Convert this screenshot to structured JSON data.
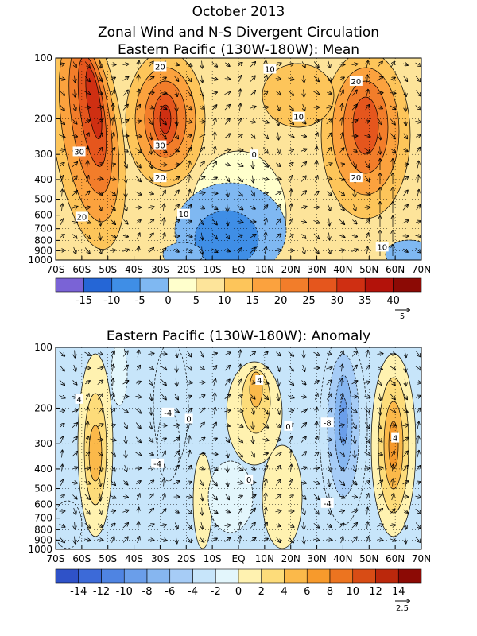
{
  "chart_data": [
    {
      "type": "heatmap",
      "title": "October 2013",
      "subtitle": "Zonal Wind and N-S Divergent Circulation",
      "panel_title": "Eastern Pacific (130W-180W): Mean",
      "x_ticks": [
        "70S",
        "60S",
        "50S",
        "40S",
        "30S",
        "20S",
        "10S",
        "EQ",
        "10N",
        "20N",
        "30N",
        "40N",
        "50N",
        "60N",
        "70N"
      ],
      "y_ticks": [
        "100",
        "200",
        "300",
        "400",
        "500",
        "600",
        "700",
        "800",
        "900",
        "1000"
      ],
      "x_range": [
        -70,
        70
      ],
      "y_range": [
        100,
        1000
      ],
      "y_scale": "log",
      "colorbar_labels": [
        "-15",
        "-10",
        "-5",
        "0",
        "5",
        "10",
        "15",
        "20",
        "25",
        "30",
        "35",
        "40"
      ],
      "colorbar_bounds": [
        -20,
        -15,
        -10,
        -5,
        0,
        5,
        10,
        15,
        20,
        25,
        30,
        35,
        40,
        45
      ],
      "colorbar_colors": [
        "#7a63d6",
        "#2566d6",
        "#3f8ee6",
        "#7fb8f2",
        "#ffffcc",
        "#fde49a",
        "#fdc55a",
        "#fba23e",
        "#f27d2a",
        "#e5561d",
        "#cf2f12",
        "#b3120a",
        "#8c0a05"
      ],
      "contour_labels": [
        {
          "text": "20",
          "x": -30,
          "y": 110
        },
        {
          "text": "30",
          "x": -61,
          "y": 290
        },
        {
          "text": "30",
          "x": -30,
          "y": 270
        },
        {
          "text": "20",
          "x": -30,
          "y": 390
        },
        {
          "text": "20",
          "x": -60,
          "y": 610
        },
        {
          "text": "10",
          "x": -21,
          "y": 590
        },
        {
          "text": "10",
          "x": 12,
          "y": 113
        },
        {
          "text": "20",
          "x": 45,
          "y": 130
        },
        {
          "text": "10",
          "x": 23,
          "y": 195
        },
        {
          "text": "0",
          "x": 6,
          "y": 300
        },
        {
          "text": "20",
          "x": 45,
          "y": 390
        },
        {
          "text": "10",
          "x": 55,
          "y": 860
        }
      ],
      "vector_reference": "5"
    },
    {
      "type": "heatmap",
      "panel_title": "Eastern Pacific (130W-180W): Anomaly",
      "x_ticks": [
        "70S",
        "60S",
        "50S",
        "40S",
        "30S",
        "20S",
        "10S",
        "EQ",
        "10N",
        "20N",
        "30N",
        "40N",
        "50N",
        "60N",
        "70N"
      ],
      "y_ticks": [
        "100",
        "200",
        "300",
        "400",
        "500",
        "600",
        "700",
        "800",
        "900",
        "1000"
      ],
      "x_range": [
        -70,
        70
      ],
      "y_range": [
        100,
        1000
      ],
      "y_scale": "log",
      "colorbar_labels": [
        "-14",
        "-12",
        "-10",
        "-8",
        "-6",
        "-4",
        "-2",
        "0",
        "2",
        "4",
        "6",
        "8",
        "10",
        "12",
        "14"
      ],
      "colorbar_bounds": [
        -16,
        -14,
        -12,
        -10,
        -8,
        -6,
        -4,
        -2,
        0,
        2,
        4,
        6,
        8,
        10,
        12,
        14,
        16
      ],
      "colorbar_colors": [
        "#2f52c8",
        "#3c6ad8",
        "#4f84e2",
        "#6a9eea",
        "#86b6f0",
        "#a6ccf6",
        "#c7e5fa",
        "#e3f6fc",
        "#fff2b0",
        "#fddc7a",
        "#fbb94a",
        "#f79a2c",
        "#ec7420",
        "#d84c15",
        "#bb280c",
        "#8c0a05"
      ],
      "contour_labels": [
        {
          "text": "4",
          "x": -61,
          "y": 180
        },
        {
          "text": "-4",
          "x": -27,
          "y": 210
        },
        {
          "text": "0",
          "x": -19,
          "y": 225
        },
        {
          "text": "4",
          "x": 8,
          "y": 145
        },
        {
          "text": "0",
          "x": 19,
          "y": 245
        },
        {
          "text": "-8",
          "x": 34,
          "y": 235
        },
        {
          "text": "4",
          "x": 60,
          "y": 280
        },
        {
          "text": "-4",
          "x": -31,
          "y": 375
        },
        {
          "text": "0",
          "x": 4,
          "y": 450
        },
        {
          "text": "-4",
          "x": 34,
          "y": 590
        }
      ],
      "vector_reference": "2.5"
    }
  ]
}
